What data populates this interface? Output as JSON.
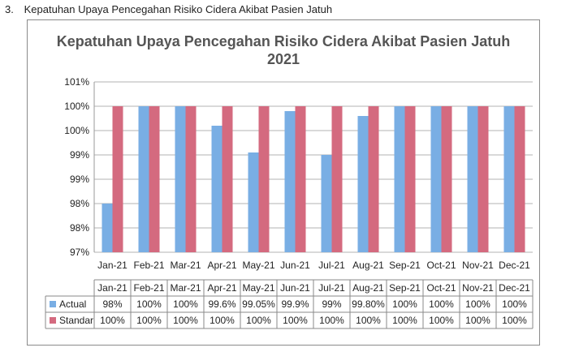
{
  "heading": {
    "number": "3.",
    "text": "Kepatuhan Upaya Pencegahan Risiko Cidera Akibat Pasien Jatuh"
  },
  "colors": {
    "actual": "#79aee4",
    "standar": "#d46a7f",
    "grid": "#9a9a9a",
    "border": "#8a8a8a"
  },
  "chart_data": {
    "type": "bar",
    "title": "Kepatuhan Upaya Pencegahan Risiko Cidera Akibat Pasien Jatuh",
    "subtitle": "2021",
    "categories": [
      "Jan-21",
      "Feb-21",
      "Mar-21",
      "Apr-21",
      "May-21",
      "Jun-21",
      "Jul-21",
      "Aug-21",
      "Sep-21",
      "Oct-21",
      "Nov-21",
      "Dec-21"
    ],
    "series": [
      {
        "name": "Actual",
        "values": [
          98,
          100,
          100,
          99.6,
          99.05,
          99.9,
          99,
          99.8,
          100,
          100,
          100,
          100
        ],
        "labels": [
          "98%",
          "100%",
          "100%",
          "99.6%",
          "99.05%",
          "99.9%",
          "99%",
          "99.80%",
          "100%",
          "100%",
          "100%",
          "100%"
        ]
      },
      {
        "name": "Standar",
        "values": [
          100,
          100,
          100,
          100,
          100,
          100,
          100,
          100,
          100,
          100,
          100,
          100
        ],
        "labels": [
          "100%",
          "100%",
          "100%",
          "100%",
          "100%",
          "100%",
          "100%",
          "100%",
          "100%",
          "100%",
          "100%",
          "100%"
        ]
      }
    ],
    "yticks": [
      "97%",
      "98%",
      "98%",
      "99%",
      "99%",
      "100%",
      "100%",
      "101%"
    ],
    "ylim": [
      97,
      100.5
    ],
    "grid": true,
    "legend": "data-table"
  }
}
